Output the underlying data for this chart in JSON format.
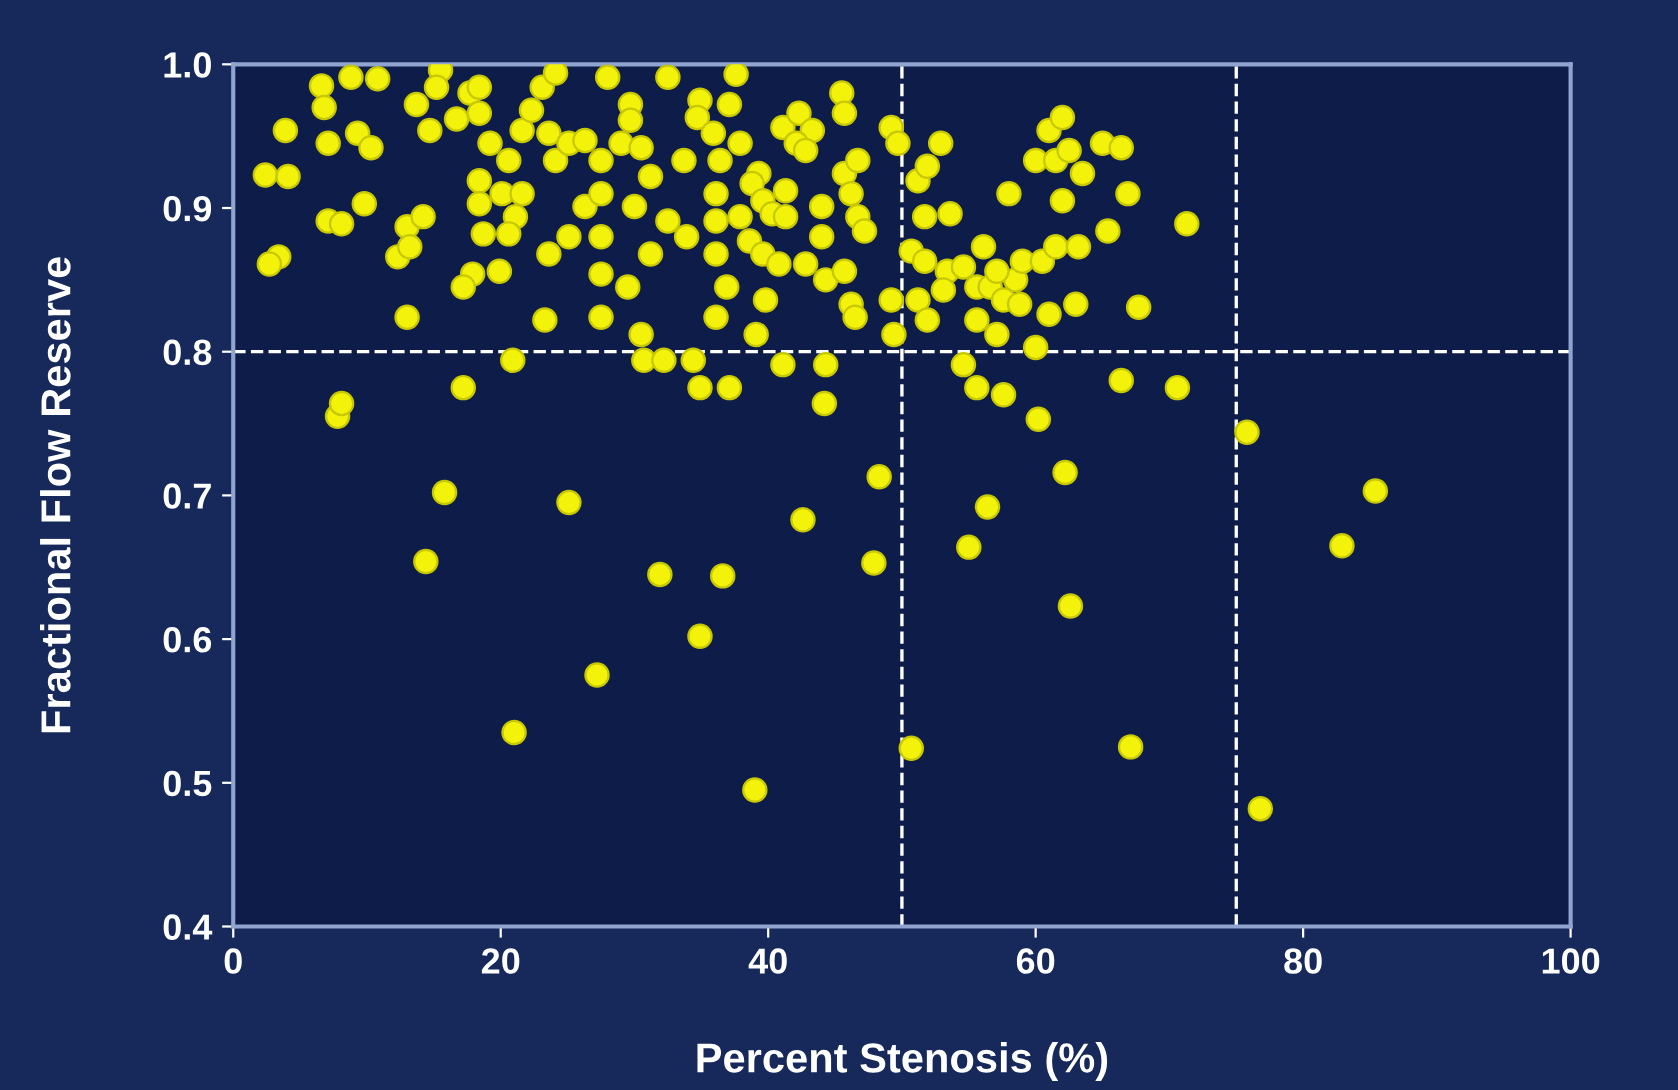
{
  "chart_data": {
    "type": "scatter",
    "xlabel": "Percent Stenosis (%)",
    "ylabel": "Fractional Flow Reserve",
    "xlim": [
      0,
      100
    ],
    "ylim": [
      0.4,
      1.0
    ],
    "xticks": [
      0,
      20,
      40,
      60,
      80,
      100
    ],
    "yticks": [
      {
        "value": 0.4,
        "label": "0.4"
      },
      {
        "value": 0.5,
        "label": "0.5"
      },
      {
        "value": 0.6,
        "label": "0.6"
      },
      {
        "value": 0.7,
        "label": "0.7"
      },
      {
        "value": 0.8,
        "label": "0.8"
      },
      {
        "value": 0.9,
        "label": "0.9"
      },
      {
        "value": 1.0,
        "label": "1.0"
      }
    ],
    "grid": false,
    "legend": false,
    "marker": "circle",
    "ref_lines": [
      {
        "axis": "x",
        "value": 50,
        "color": "#ffffff",
        "line_style": "dashed"
      },
      {
        "axis": "x",
        "value": 75,
        "color": "#ffffff",
        "line_style": "dashed"
      },
      {
        "axis": "y",
        "value": 0.8,
        "color": "#ffffff",
        "line_style": "dashed"
      }
    ],
    "series": [
      {
        "color": "#f2f20a",
        "x": [
          6.6,
          8.8,
          10.8,
          6.8,
          3.9,
          7.1,
          9.3,
          10.3,
          2.4,
          4.1,
          7.1,
          9.8,
          8.1,
          3.4,
          2.7,
          13,
          14.2,
          12.3,
          13.2,
          13,
          15.5,
          15.2,
          13.7,
          14.7,
          16.7,
          17.7,
          18.4,
          18.4,
          19.2,
          20.6,
          21.6,
          22.3,
          23.1,
          24.1,
          23.6,
          24.1,
          25.1,
          26.3,
          28,
          29.7,
          29.7,
          29,
          30.5,
          27.5,
          31.2,
          18.4,
          20.1,
          21.6,
          18.4,
          21.1,
          18.7,
          20.6,
          23.6,
          25.1,
          26.3,
          27.5,
          27.5,
          30,
          31.2,
          32.5,
          17.9,
          17.2,
          19.9,
          27.5,
          29.5,
          23.3,
          27.5,
          30.5,
          30.7,
          20.9,
          17.2,
          32.5,
          37.6,
          34.9,
          37.1,
          34.7,
          45.5,
          45.7,
          41.1,
          42.3,
          43.3,
          42.1,
          42.8,
          49.2,
          49.7,
          35.9,
          37.9,
          36.4,
          33.7,
          39.3,
          38.8,
          41.3,
          39.6,
          36.1,
          40.3,
          41.3,
          44,
          45.7,
          46.7,
          46.2,
          46.7,
          47.2,
          33.9,
          36.1,
          37.9,
          36.1,
          38.6,
          39.6,
          40.8,
          42.8,
          44.3,
          45.7,
          44,
          36.9,
          39.8,
          36.1,
          39.1,
          46.2,
          46.5,
          49.2,
          49.4,
          32.2,
          34.4,
          41.1,
          44.3,
          34.9,
          37.1,
          51.2,
          51.9,
          52.9,
          51.7,
          53.6,
          50.7,
          51.7,
          53.4,
          54.6,
          56.1,
          55.6,
          53.1,
          56.6,
          57.6,
          58.5,
          59,
          60.5,
          61.5,
          63.2,
          57.1,
          58.8,
          61,
          63,
          51.2,
          51.9,
          55.6,
          57.1,
          60,
          54.6,
          55.6,
          57.6,
          66.4,
          67.7,
          65.4,
          66.9,
          58,
          60,
          61.5,
          62.5,
          61,
          62,
          63.5,
          62,
          65,
          66.4,
          71.3,
          70.6,
          7.8,
          8.1,
          44.2,
          60.2,
          75.8,
          48.3,
          62.2,
          15.8,
          25.1,
          42.6,
          56.4,
          55,
          47.9,
          85.4,
          82.9,
          14.4,
          31.9,
          36.6,
          62.6,
          34.9,
          27.2,
          21,
          50.7,
          67.1,
          39,
          76.8
        ],
        "values": [
          0.985,
          0.991,
          0.99,
          0.97,
          0.954,
          0.945,
          0.952,
          0.942,
          0.923,
          0.922,
          0.891,
          0.903,
          0.889,
          0.866,
          0.861,
          0.887,
          0.894,
          0.866,
          0.873,
          0.824,
          0.996,
          0.984,
          0.972,
          0.954,
          0.962,
          0.98,
          0.984,
          0.966,
          0.945,
          0.933,
          0.954,
          0.968,
          0.984,
          0.994,
          0.952,
          0.933,
          0.945,
          0.947,
          0.991,
          0.972,
          0.961,
          0.945,
          0.942,
          0.933,
          0.922,
          0.919,
          0.91,
          0.91,
          0.903,
          0.894,
          0.882,
          0.882,
          0.868,
          0.88,
          0.901,
          0.91,
          0.88,
          0.901,
          0.868,
          0.891,
          0.854,
          0.845,
          0.856,
          0.854,
          0.845,
          0.822,
          0.824,
          0.812,
          0.794,
          0.794,
          0.775,
          0.991,
          0.993,
          0.975,
          0.972,
          0.963,
          0.98,
          0.966,
          0.956,
          0.966,
          0.954,
          0.945,
          0.94,
          0.956,
          0.945,
          0.952,
          0.945,
          0.933,
          0.933,
          0.924,
          0.917,
          0.912,
          0.905,
          0.91,
          0.896,
          0.894,
          0.901,
          0.924,
          0.933,
          0.91,
          0.894,
          0.884,
          0.88,
          0.891,
          0.894,
          0.868,
          0.877,
          0.868,
          0.861,
          0.861,
          0.85,
          0.856,
          0.88,
          0.845,
          0.836,
          0.824,
          0.812,
          0.833,
          0.824,
          0.836,
          0.812,
          0.794,
          0.794,
          0.791,
          0.791,
          0.775,
          0.775,
          0.919,
          0.929,
          0.945,
          0.894,
          0.896,
          0.87,
          0.863,
          0.856,
          0.859,
          0.873,
          0.845,
          0.843,
          0.845,
          0.836,
          0.85,
          0.863,
          0.863,
          0.873,
          0.873,
          0.856,
          0.833,
          0.826,
          0.833,
          0.836,
          0.822,
          0.822,
          0.812,
          0.803,
          0.791,
          0.775,
          0.77,
          0.78,
          0.831,
          0.884,
          0.91,
          0.91,
          0.933,
          0.933,
          0.94,
          0.954,
          0.963,
          0.924,
          0.905,
          0.945,
          0.942,
          0.889,
          0.775,
          0.755,
          0.764,
          0.764,
          0.753,
          0.744,
          0.713,
          0.716,
          0.702,
          0.695,
          0.683,
          0.692,
          0.664,
          0.653,
          0.703,
          0.665,
          0.654,
          0.645,
          0.644,
          0.623,
          0.602,
          0.575,
          0.535,
          0.524,
          0.525,
          0.495,
          0.482
        ]
      }
    ]
  }
}
